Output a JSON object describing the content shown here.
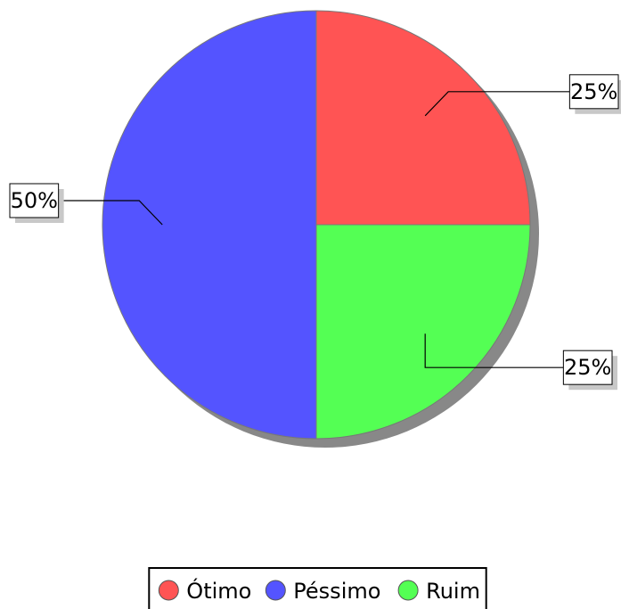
{
  "chart_data": {
    "type": "pie",
    "slices": [
      {
        "label": "Ótimo",
        "value": 25,
        "color": "#ff5454"
      },
      {
        "label": "Ruim",
        "value": 25,
        "color": "#54ff54"
      },
      {
        "label": "Péssimo",
        "value": 50,
        "color": "#5454ff"
      }
    ],
    "data_labels": [
      "25%",
      "25%",
      "50%"
    ],
    "legend": {
      "placement": "bottom",
      "entries": [
        {
          "label": "Ótimo",
          "color": "#ff5454"
        },
        {
          "label": "Péssimo",
          "color": "#5454ff"
        },
        {
          "label": "Ruim",
          "color": "#54ff54"
        }
      ]
    },
    "shadow": true
  }
}
